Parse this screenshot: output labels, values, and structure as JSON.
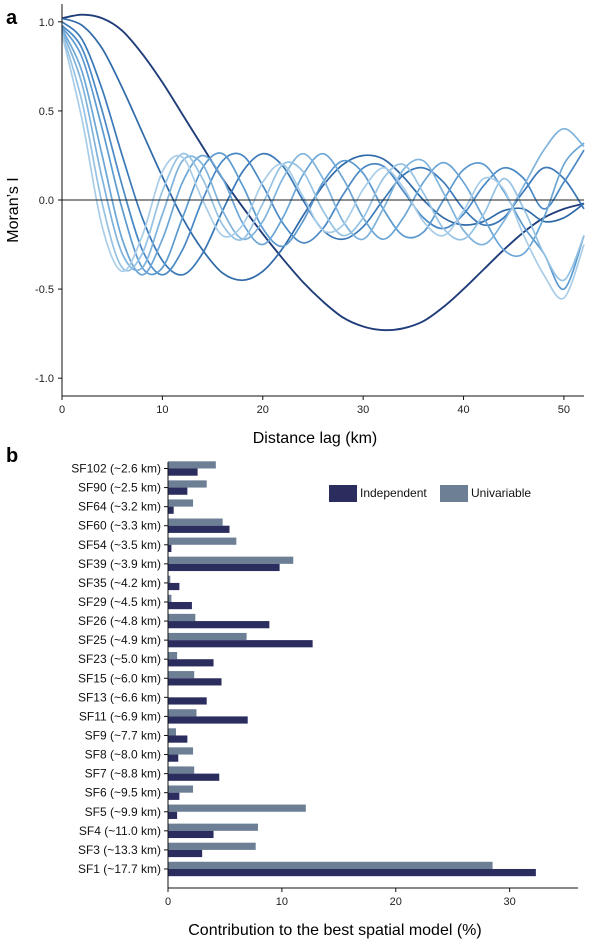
{
  "chart_data": [
    {
      "panel": "a",
      "type": "line",
      "xlabel": "Distance lag (km)",
      "ylabel": "Moran’s I",
      "xlim": [
        0,
        52
      ],
      "ylim": [
        -1.1,
        1.1
      ],
      "xticks": [
        0,
        10,
        20,
        30,
        40,
        50
      ],
      "yticks": [
        -1.0,
        -0.5,
        0.0,
        0.5,
        1.0
      ],
      "ytick_labels": [
        "-1.0",
        "-0.5",
        "0.0",
        "0.5",
        "1.0"
      ],
      "reference_line_y": 0,
      "grid": false,
      "series": [
        {
          "color": "#1f3d7a",
          "x": [
            0,
            2,
            4,
            6,
            8,
            10,
            12,
            14,
            16,
            18,
            20,
            22,
            24,
            26,
            28,
            30,
            32,
            34,
            36,
            38,
            40,
            42,
            44,
            46,
            48,
            50,
            52
          ],
          "y": [
            1.02,
            1.04,
            1.02,
            0.95,
            0.82,
            0.66,
            0.48,
            0.3,
            0.12,
            -0.04,
            -0.19,
            -0.33,
            -0.46,
            -0.57,
            -0.66,
            -0.71,
            -0.73,
            -0.72,
            -0.68,
            -0.6,
            -0.5,
            -0.39,
            -0.28,
            -0.18,
            -0.1,
            -0.05,
            -0.02
          ]
        },
        {
          "color": "#2f6aa8",
          "x": [
            0,
            2,
            4,
            6,
            8,
            10,
            12,
            14,
            16,
            18,
            20,
            22,
            24,
            26,
            28,
            30,
            32,
            34,
            36,
            38,
            40,
            42,
            44,
            46,
            48,
            50,
            52
          ],
          "y": [
            1.02,
            0.98,
            0.85,
            0.63,
            0.38,
            0.13,
            -0.1,
            -0.28,
            -0.41,
            -0.45,
            -0.4,
            -0.27,
            -0.09,
            0.08,
            0.2,
            0.25,
            0.23,
            0.13,
            0.0,
            -0.1,
            -0.14,
            -0.12,
            -0.06,
            -0.05,
            -0.12,
            -0.1,
            -0.02
          ]
        },
        {
          "color": "#3a78b8",
          "x": [
            0,
            2,
            4,
            6,
            8,
            10,
            12,
            14,
            16,
            18,
            20,
            22,
            24,
            26,
            28,
            30,
            32,
            34,
            36,
            38,
            40,
            42,
            44,
            46,
            48,
            50,
            52
          ],
          "y": [
            1.0,
            0.9,
            0.62,
            0.25,
            -0.1,
            -0.34,
            -0.42,
            -0.3,
            -0.06,
            0.16,
            0.26,
            0.19,
            0.0,
            -0.17,
            -0.22,
            -0.15,
            0.0,
            0.14,
            0.18,
            0.1,
            -0.05,
            -0.14,
            -0.1,
            0.05,
            0.18,
            0.12,
            -0.05
          ]
        },
        {
          "color": "#4a89c5",
          "x": [
            0,
            2,
            4,
            6,
            8,
            10,
            12,
            14,
            16,
            18,
            20,
            22,
            24,
            26,
            28,
            30,
            32,
            34,
            36,
            38,
            40,
            42,
            44,
            46,
            48,
            50,
            52
          ],
          "y": [
            0.98,
            0.85,
            0.5,
            0.08,
            -0.28,
            -0.42,
            -0.28,
            0.0,
            0.22,
            0.25,
            0.08,
            -0.13,
            -0.24,
            -0.16,
            0.03,
            0.18,
            0.19,
            0.05,
            -0.1,
            -0.16,
            -0.08,
            0.08,
            0.18,
            0.12,
            -0.05,
            0.1,
            0.28
          ]
        },
        {
          "color": "#5c9acf",
          "x": [
            0,
            2,
            4,
            6,
            8,
            10,
            12,
            14,
            16,
            18,
            20,
            22,
            24,
            26,
            28,
            30,
            32,
            34,
            36,
            38,
            40,
            42,
            44,
            46,
            48,
            50,
            52
          ],
          "y": [
            0.97,
            0.8,
            0.4,
            -0.05,
            -0.38,
            -0.38,
            -0.1,
            0.18,
            0.26,
            0.08,
            -0.16,
            -0.26,
            -0.12,
            0.1,
            0.22,
            0.15,
            -0.05,
            -0.2,
            -0.18,
            0.0,
            0.17,
            0.2,
            0.05,
            -0.15,
            -0.3,
            -0.5,
            -0.2
          ]
        },
        {
          "color": "#6ba6d6",
          "x": [
            0,
            2,
            4,
            6,
            8,
            10,
            12,
            14,
            16,
            18,
            20,
            22,
            24,
            26,
            28,
            30,
            32,
            34,
            36,
            38,
            40,
            42,
            44,
            46,
            48,
            50,
            52
          ],
          "y": [
            0.96,
            0.72,
            0.25,
            -0.22,
            -0.42,
            -0.22,
            0.1,
            0.25,
            0.12,
            -0.13,
            -0.25,
            -0.1,
            0.14,
            0.26,
            0.12,
            -0.1,
            -0.22,
            -0.1,
            0.1,
            0.21,
            0.1,
            -0.1,
            -0.28,
            -0.3,
            -0.1,
            0.2,
            0.32
          ]
        },
        {
          "color": "#7fb3dc",
          "x": [
            0,
            2,
            4,
            6,
            8,
            10,
            12,
            14,
            16,
            18,
            20,
            22,
            24,
            26,
            28,
            30,
            32,
            34,
            36,
            38,
            40,
            42,
            44,
            46,
            48,
            50,
            52
          ],
          "y": [
            0.95,
            0.65,
            0.12,
            -0.3,
            -0.38,
            -0.08,
            0.22,
            0.2,
            -0.06,
            -0.22,
            -0.12,
            0.12,
            0.26,
            0.12,
            -0.12,
            -0.22,
            -0.05,
            0.17,
            0.22,
            0.04,
            -0.17,
            -0.25,
            -0.12,
            0.08,
            0.28,
            0.4,
            0.3
          ]
        },
        {
          "color": "#96c2e3",
          "x": [
            0,
            2,
            4,
            6,
            8,
            10,
            12,
            14,
            16,
            18,
            20,
            22,
            24,
            26,
            28,
            30,
            32,
            34,
            36,
            38,
            40,
            42,
            44,
            46,
            48,
            50,
            52
          ],
          "y": [
            0.94,
            0.55,
            -0.02,
            -0.38,
            -0.3,
            0.05,
            0.26,
            0.12,
            -0.14,
            -0.22,
            -0.02,
            0.2,
            0.16,
            -0.06,
            -0.2,
            -0.1,
            0.12,
            0.2,
            0.04,
            -0.16,
            -0.22,
            -0.08,
            0.12,
            -0.05,
            -0.3,
            -0.45,
            -0.2
          ]
        },
        {
          "color": "#a9cde8",
          "x": [
            0,
            2,
            4,
            6,
            8,
            10,
            12,
            14,
            16,
            18,
            20,
            22,
            24,
            26,
            28,
            30,
            32,
            34,
            36,
            38,
            40,
            42,
            44,
            46,
            48,
            50,
            52
          ],
          "y": [
            0.93,
            0.45,
            -0.15,
            -0.4,
            -0.2,
            0.16,
            0.24,
            0.0,
            -0.2,
            -0.14,
            0.1,
            0.2,
            0.02,
            -0.17,
            -0.14,
            0.06,
            0.18,
            0.07,
            -0.12,
            -0.2,
            -0.06,
            0.12,
            0.06,
            -0.2,
            -0.42,
            -0.55,
            -0.25
          ]
        }
      ]
    },
    {
      "panel": "b",
      "type": "bar",
      "orientation": "horizontal",
      "xlabel": "Contribution to the best spatial model (%)",
      "xlim": [
        0,
        36
      ],
      "xticks": [
        0,
        10,
        20,
        30
      ],
      "grid": false,
      "legend_position": "top-right",
      "categories": [
        "SF102 (~2.6 km)",
        "SF90 (~2.5 km)",
        "SF64 (~3.2 km)",
        "SF60 (~3.3 km)",
        "SF54 (~3.5 km)",
        "SF39 (~3.9 km)",
        "SF35 (~4.2 km)",
        "SF29 (~4.5 km)",
        "SF26 (~4.8 km)",
        "SF25 (~4.9 km)",
        "SF23 (~5.0 km)",
        "SF15 (~6.0 km)",
        "SF13 (~6.6 km)",
        "SF11 (~6.9 km)",
        "SF9 (~7.7 km)",
        "SF8 (~8.0 km)",
        "SF7 (~8.8 km)",
        "SF6 (~9.5 km)",
        "SF5 (~9.9 km)",
        "SF4 (~11.0 km)",
        "SF3 (~13.3 km)",
        "SF1 (~17.7 km)"
      ],
      "series": [
        {
          "name": "Independent",
          "color": "#2b2d5e",
          "values": [
            2.6,
            1.7,
            0.5,
            5.4,
            0.3,
            9.8,
            1.0,
            2.1,
            8.9,
            12.7,
            4.0,
            4.7,
            3.4,
            7.0,
            1.7,
            0.9,
            4.5,
            1.0,
            0.8,
            4.0,
            3.0,
            32.3
          ]
        },
        {
          "name": "Univariable",
          "color": "#6c7f94",
          "values": [
            4.2,
            3.4,
            2.2,
            4.8,
            6.0,
            11.0,
            0.2,
            0.3,
            2.4,
            6.9,
            0.8,
            2.3,
            0.0,
            2.5,
            0.7,
            2.2,
            2.3,
            2.2,
            12.1,
            7.9,
            7.7,
            28.5
          ]
        }
      ]
    }
  ]
}
